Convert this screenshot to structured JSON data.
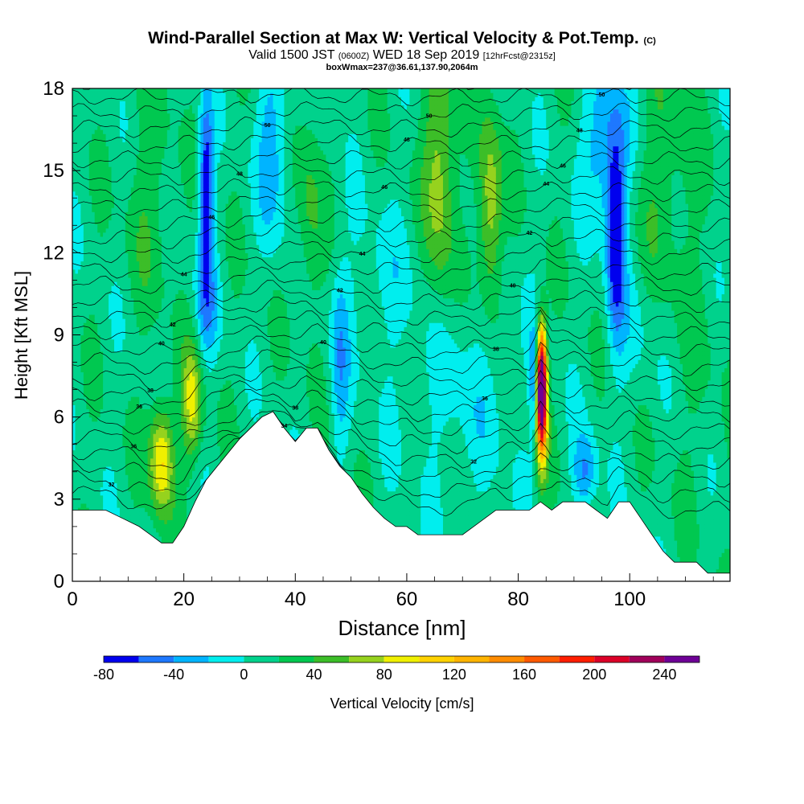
{
  "title": {
    "main": "Wind-Parallel Section at Max W: Vertical Velocity & Pot.Temp.",
    "main_suffix": "(C)",
    "valid_prefix": "Valid 1500 JST",
    "valid_utc": "(0600Z)",
    "valid_date": "WED 18 Sep 2019",
    "forecast": "[12hrFcst@2315z]",
    "boxw": "boxWmax=237@36.61,137.90,2064m"
  },
  "chart_data": {
    "type": "heatmap",
    "xlabel": "Distance [nm]",
    "ylabel": "Height [Kft MSL]",
    "xlim": [
      0,
      118
    ],
    "ylim": [
      0,
      18
    ],
    "x_ticks": [
      0,
      20,
      40,
      60,
      80,
      100
    ],
    "y_ticks": [
      0,
      3,
      6,
      9,
      12,
      15,
      18
    ],
    "colorbar": {
      "label": "Vertical Velocity [cm/s]",
      "tick_values": [
        -80,
        -40,
        0,
        40,
        80,
        120,
        160,
        200,
        240
      ],
      "levels": [
        -80,
        -60,
        -40,
        -20,
        0,
        20,
        40,
        60,
        80,
        100,
        120,
        140,
        160,
        180,
        200,
        220,
        240,
        260
      ],
      "colors": [
        "#0000ee",
        "#1e78ff",
        "#00b4ff",
        "#00eeee",
        "#00d28c",
        "#00c850",
        "#3cbe28",
        "#96d21e",
        "#f0f000",
        "#ffd200",
        "#ffb400",
        "#ff8c00",
        "#ff5a00",
        "#ff1e00",
        "#dc0028",
        "#a0005a",
        "#6e0096"
      ]
    },
    "terrain": {
      "x": [
        0,
        6,
        9,
        12,
        14,
        16,
        18,
        20,
        22,
        24,
        26,
        28,
        30,
        32,
        34,
        36,
        38,
        40,
        42,
        44,
        46,
        48,
        50,
        52,
        54,
        56,
        58,
        60,
        62,
        64,
        66,
        68,
        70,
        72,
        74,
        76,
        78,
        80,
        82,
        84,
        86,
        88,
        90,
        92,
        94,
        96,
        98,
        100,
        102,
        104,
        106,
        108,
        110,
        112,
        114,
        116,
        118
      ],
      "height_kft": [
        2.6,
        2.6,
        2.3,
        2.0,
        1.7,
        1.4,
        1.4,
        2.0,
        2.9,
        3.7,
        4.2,
        4.7,
        5.2,
        5.6,
        6.0,
        6.2,
        5.6,
        5.1,
        5.6,
        5.6,
        4.8,
        4.2,
        3.8,
        3.2,
        2.7,
        2.3,
        2.0,
        2.0,
        1.7,
        1.7,
        1.7,
        1.7,
        1.7,
        2.0,
        2.3,
        2.6,
        2.6,
        2.6,
        2.6,
        2.9,
        2.6,
        2.9,
        2.9,
        2.9,
        2.6,
        2.3,
        2.9,
        2.9,
        2.3,
        1.7,
        1.1,
        0.7,
        0.7,
        0.7,
        0.3,
        0.3,
        0.3
      ]
    },
    "theta_contour_labels": [
      "32",
      "36",
      "36",
      "38",
      "40",
      "42",
      "44",
      "46",
      "48",
      "50",
      "34",
      "38",
      "40",
      "42",
      "44",
      "46",
      "48",
      "50",
      "52",
      "32",
      "36",
      "38",
      "40",
      "42",
      "44",
      "46",
      "48",
      "50",
      "30"
    ]
  }
}
